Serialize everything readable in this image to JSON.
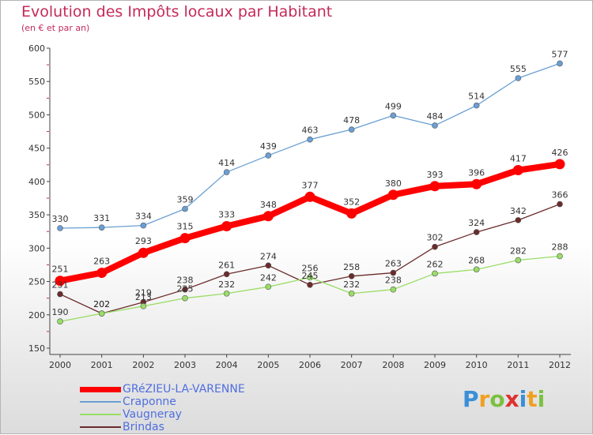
{
  "header": {
    "title": "Evolution des Impôts locaux par Habitant",
    "subtitle": "(en € et par an)"
  },
  "logo": {
    "text": "Proxiti"
  },
  "chart_data": {
    "type": "line",
    "title": "Evolution des Impôts locaux par Habitant",
    "subtitle": "(en € et par an)",
    "xlabel": "",
    "ylabel": "",
    "x": [
      2000,
      2001,
      2002,
      2003,
      2004,
      2005,
      2006,
      2007,
      2008,
      2009,
      2010,
      2011,
      2012
    ],
    "ylim": [
      150,
      600
    ],
    "yticks": [
      150,
      200,
      250,
      300,
      350,
      400,
      450,
      500,
      550,
      600
    ],
    "grid": false,
    "legend_position": "bottom-left",
    "series": [
      {
        "name": "GRéZIEU-LA-VARENNE",
        "color": "#ff0000",
        "values": [
          251,
          263,
          293,
          315,
          333,
          348,
          377,
          352,
          380,
          393,
          396,
          417,
          426
        ]
      },
      {
        "name": "Craponne",
        "color": "#6a9fd4",
        "values": [
          330,
          331,
          334,
          359,
          414,
          439,
          463,
          478,
          499,
          484,
          514,
          555,
          577
        ]
      },
      {
        "name": "Vaugneray",
        "color": "#99dd66",
        "values": [
          190,
          202,
          213,
          225,
          232,
          242,
          256,
          232,
          238,
          262,
          268,
          282,
          288
        ]
      },
      {
        "name": "Brindas",
        "color": "#6b2b2b",
        "values": [
          231,
          202,
          219,
          238,
          261,
          274,
          245,
          258,
          263,
          302,
          324,
          342,
          366
        ]
      }
    ]
  }
}
